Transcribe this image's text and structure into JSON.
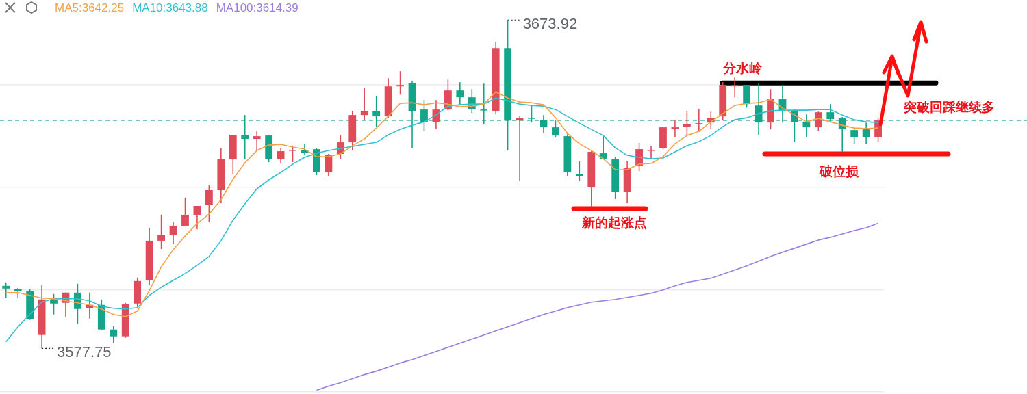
{
  "chart_data": {
    "type": "candlestick",
    "categories": [
      null,
      null,
      null,
      null,
      null,
      null,
      null,
      null,
      null,
      null,
      null,
      null,
      null,
      null,
      null,
      null,
      null,
      null,
      null,
      null,
      null,
      null,
      null,
      null,
      null,
      null,
      null,
      null,
      null,
      null,
      null,
      null,
      null,
      null,
      null,
      null,
      null,
      null,
      null,
      null,
      null,
      null,
      null,
      null,
      null,
      null,
      null,
      null,
      null,
      null,
      null,
      null,
      null,
      null,
      null,
      null,
      null,
      null,
      null,
      null,
      null,
      null,
      null,
      null,
      null,
      null,
      null,
      null,
      null,
      null,
      null,
      null,
      null,
      null
    ],
    "ohlc": [
      [
        3596.1,
        3597.1,
        3592.5,
        3595.3
      ],
      [
        3595.1,
        3595.5,
        3592.5,
        3594.5
      ],
      [
        3594.5,
        3595.1,
        3586.1,
        3586.3
      ],
      [
        3581.7,
        3596.3,
        3577.75,
        3592.1
      ],
      [
        3591.9,
        3593.7,
        3587.7,
        3590.9
      ],
      [
        3591.1,
        3594.1,
        3586.9,
        3594.1
      ],
      [
        3594.1,
        3596.7,
        3584.9,
        3589.3
      ],
      [
        3589.5,
        3594.1,
        3586.5,
        3590.5
      ],
      [
        3590.5,
        3592.1,
        3583.1,
        3583.3
      ],
      [
        3583.3,
        3584.3,
        3579.3,
        3581.3
      ],
      [
        3581.3,
        3591.1,
        3580.9,
        3590.7
      ],
      [
        3590.9,
        3598.5,
        3589.9,
        3597.5
      ],
      [
        3597.7,
        3613.1,
        3596.3,
        3609.3
      ],
      [
        3609.3,
        3616.9,
        3606.9,
        3610.9
      ],
      [
        3610.9,
        3614.9,
        3608.5,
        3613.7
      ],
      [
        3613.7,
        3621.9,
        3613.5,
        3616.9
      ],
      [
        3616.9,
        3619.5,
        3612.7,
        3619.5
      ],
      [
        3619.7,
        3625.5,
        3614.7,
        3624.1
      ],
      [
        3624.1,
        3636.3,
        3620.3,
        3633.3
      ],
      [
        3633.1,
        3640.3,
        3628.7,
        3640.3
      ],
      [
        3640.3,
        3646.1,
        3633.1,
        3639.1
      ],
      [
        3639.1,
        3641.3,
        3635.5,
        3639.9
      ],
      [
        3640.1,
        3640.3,
        3632.3,
        3633.3
      ],
      [
        3633.1,
        3636.3,
        3631.9,
        3635.5
      ],
      [
        3635.7,
        3637.1,
        3632.3,
        3635.9
      ],
      [
        3635.9,
        3637.7,
        3634.3,
        3635.1
      ],
      [
        3636.1,
        3636.3,
        3628.5,
        3629.3
      ],
      [
        3629.3,
        3634.7,
        3628.3,
        3634.5
      ],
      [
        3634.7,
        3640.3,
        3633.3,
        3638.1
      ],
      [
        3638.1,
        3647.3,
        3635.7,
        3646.1
      ],
      [
        3646.1,
        3654.1,
        3644.5,
        3647.3
      ],
      [
        3647.3,
        3651.7,
        3642.7,
        3645.7
      ],
      [
        3645.7,
        3656.9,
        3645.3,
        3654.5
      ],
      [
        3654.5,
        3658.9,
        3652.1,
        3654.9
      ],
      [
        3655.5,
        3656.1,
        3636.5,
        3647.3
      ],
      [
        3647.7,
        3650.5,
        3641.5,
        3644.1
      ],
      [
        3644.1,
        3650.5,
        3641.9,
        3647.7
      ],
      [
        3647.7,
        3656.5,
        3647.5,
        3653.3
      ],
      [
        3653.3,
        3655.7,
        3648.9,
        3651.3
      ],
      [
        3651.3,
        3653.7,
        3646.7,
        3647.9
      ],
      [
        3647.7,
        3655.3,
        3643.3,
        3647.5
      ],
      [
        3647.3,
        3667.5,
        3646.3,
        3665.7
      ],
      [
        3665.7,
        3673.92,
        3635.7,
        3644.5
      ],
      [
        3644.5,
        3645.9,
        3626.7,
        3645.3
      ],
      [
        3645.3,
        3648.9,
        3643.9,
        3645.1
      ],
      [
        3644.7,
        3646.1,
        3640.9,
        3642.5
      ],
      [
        3642.5,
        3644.5,
        3639.5,
        3640.1
      ],
      [
        3639.9,
        3640.9,
        3628.3,
        3629.3
      ],
      [
        3628.9,
        3632.5,
        3626.7,
        3628.3
      ],
      [
        3624.9,
        3635.5,
        3619.3,
        3635.3
      ],
      [
        3634.9,
        3640.3,
        3633.1,
        3633.3
      ],
      [
        3633.3,
        3633.9,
        3621.5,
        3623.7
      ],
      [
        3623.7,
        3632.5,
        3620.3,
        3630.5
      ],
      [
        3631.1,
        3637.9,
        3629.7,
        3636.1
      ],
      [
        3635.7,
        3637.1,
        3633.1,
        3635.9
      ],
      [
        3636.5,
        3642.7,
        3636.1,
        3642.5
      ],
      [
        3642.1,
        3644.7,
        3639.7,
        3642.5
      ],
      [
        3642.7,
        3647.3,
        3640.3,
        3643.5
      ],
      [
        3643.5,
        3647.9,
        3641.1,
        3643.7
      ],
      [
        3643.9,
        3647.1,
        3641.9,
        3645.3
      ],
      [
        3645.7,
        3655.7,
        3644.5,
        3654.9
      ],
      [
        3654.5,
        3657.3,
        3651.3,
        3654.9
      ],
      [
        3654.9,
        3654.9,
        3648.3,
        3649.3
      ],
      [
        3648.9,
        3655.5,
        3640.1,
        3643.9
      ],
      [
        3643.9,
        3653.7,
        3641.9,
        3650.9
      ],
      [
        3650.9,
        3654.9,
        3643.9,
        3647.3
      ],
      [
        3647.5,
        3647.7,
        3638.1,
        3644.1
      ],
      [
        3644.1,
        3646.3,
        3639.7,
        3642.5
      ],
      [
        3642.5,
        3647.1,
        3641.5,
        3646.9
      ],
      [
        3646.9,
        3649.3,
        3644.1,
        3644.9
      ],
      [
        3645.3,
        3645.5,
        3635.3,
        3641.9
      ],
      [
        3641.7,
        3642.1,
        3637.7,
        3639.7
      ],
      [
        3641.9,
        3643.9,
        3637.7,
        3639.7
      ],
      [
        3639.7,
        3645.1,
        3638.1,
        3644.5
      ]
    ],
    "colors": [
      "#14a589",
      "#14a589",
      "#14a589",
      "#e04b5a",
      "#14a589",
      "#e04b5a",
      "#14a589",
      "#e04b5a",
      "#14a589",
      "#14a589",
      "#e04b5a",
      "#e04b5a",
      "#e04b5a",
      "#e04b5a",
      "#e04b5a",
      "#e04b5a",
      "#e04b5a",
      "#e04b5a",
      "#e04b5a",
      "#e04b5a",
      "#14a589",
      "#e04b5a",
      "#14a589",
      "#e04b5a",
      "#e04b5a",
      "#14a589",
      "#14a589",
      "#e04b5a",
      "#e04b5a",
      "#e04b5a",
      "#e04b5a",
      "#14a589",
      "#e04b5a",
      "#e04b5a",
      "#14a589",
      "#14a589",
      "#e04b5a",
      "#e04b5a",
      "#14a589",
      "#14a589",
      "#14a589",
      "#e04b5a",
      "#14a589",
      "#e04b5a",
      "#14a589",
      "#14a589",
      "#14a589",
      "#14a589",
      "#14a589",
      "#e04b5a",
      "#14a589",
      "#14a589",
      "#e04b5a",
      "#e04b5a",
      "#e04b5a",
      "#e04b5a",
      "#e04b5a",
      "#e04b5a",
      "#e04b5a",
      "#e04b5a",
      "#e04b5a",
      "#e04b5a",
      "#14a589",
      "#14a589",
      "#e04b5a",
      "#14a589",
      "#14a589",
      "#14a589",
      "#e04b5a",
      "#14a589",
      "#14a589",
      "#14a589",
      "#14a589",
      "#e04b5a"
    ],
    "series": [
      {
        "name": "MA5:3642.25",
        "type": "line",
        "color": "#f5a146",
        "values": [
          3594.1,
          3594.1,
          3593.3,
          3592.5,
          3592.3,
          3591.7,
          3591.1,
          3590.5,
          3589.3,
          3587.7,
          3587.1,
          3588.7,
          3594.7,
          3601.7,
          3606.7,
          3610.7,
          3614.3,
          3617.1,
          3621.3,
          3627.3,
          3632.1,
          3635.7,
          3637.3,
          3637.5,
          3636.7,
          3636.1,
          3633.9,
          3633.9,
          3634.7,
          3637.1,
          3639.1,
          3642.3,
          3645.7,
          3649.5,
          3649.7,
          3649.1,
          3649.7,
          3649.3,
          3648.5,
          3648.7,
          3649.3,
          3652.9,
          3651.1,
          3649.9,
          3649.7,
          3649.1,
          3645.3,
          3640.7,
          3637.7,
          3635.7,
          3633.3,
          3630.1,
          3630.1,
          3631.7,
          3631.9,
          3633.9,
          3637.7,
          3640.1,
          3641.3,
          3644.1,
          3646.5,
          3648.9,
          3649.5,
          3649.7,
          3650.7,
          3648.1,
          3646.1,
          3644.1,
          3645.1,
          3644.1,
          3643.1,
          3642.3,
          3642.1,
          3642.3
        ]
      },
      {
        "name": "MA10:3643.88",
        "type": "line",
        "color": "#33bfd0",
        "values": [
          3579.7,
          3584.1,
          3587.7,
          3591.3,
          3592.3,
          3592.3,
          3592.3,
          3591.7,
          3590.1,
          3589.5,
          3589.3,
          3589.7,
          3593.3,
          3595.7,
          3597.7,
          3599.7,
          3602.1,
          3604.7,
          3609.3,
          3615.3,
          3620.1,
          3624.5,
          3627.1,
          3629.3,
          3631.7,
          3633.7,
          3634.9,
          3635.7,
          3636.3,
          3636.9,
          3637.5,
          3638.1,
          3640.3,
          3641.9,
          3643.1,
          3644.1,
          3646.1,
          3648.7,
          3649.1,
          3649.3,
          3649.3,
          3651.1,
          3650.3,
          3649.3,
          3648.9,
          3648.7,
          3647.7,
          3645.7,
          3643.7,
          3641.9,
          3640.1,
          3636.5,
          3634.3,
          3633.7,
          3633.3,
          3633.5,
          3635.3,
          3637.1,
          3638.3,
          3640.1,
          3642.7,
          3644.7,
          3645.3,
          3646.5,
          3647.3,
          3647.5,
          3647.5,
          3647.5,
          3647.7,
          3647.7,
          3646.1,
          3644.7,
          3644.1,
          3643.9
        ]
      },
      {
        "name": "MA100:3614.39",
        "type": "line",
        "color": "#9a7ee0",
        "values": [
          null,
          null,
          null,
          null,
          null,
          null,
          null,
          null,
          null,
          null,
          null,
          null,
          null,
          null,
          null,
          null,
          null,
          null,
          null,
          null,
          null,
          null,
          null,
          null,
          null,
          null,
          3565.5,
          3566.7,
          3567.7,
          3568.9,
          3570.1,
          3571.1,
          3572.3,
          3573.5,
          3574.5,
          3575.7,
          3576.9,
          3578.1,
          3579.3,
          3580.5,
          3581.7,
          3582.9,
          3584.1,
          3585.3,
          3586.5,
          3587.7,
          3588.7,
          3589.7,
          3590.5,
          3591.3,
          3591.7,
          3592.1,
          3592.7,
          3593.3,
          3593.9,
          3594.9,
          3596.1,
          3597.1,
          3597.7,
          3598.3,
          3599.5,
          3600.7,
          3601.9,
          3603.3,
          3604.7,
          3605.9,
          3607.1,
          3608.3,
          3609.5,
          3610.3,
          3611.3,
          3612.3,
          3613.1,
          3614.4
        ]
      }
    ],
    "yticks": [
      {
        "value": 3565,
        "label": null
      },
      {
        "value": 3595,
        "label": null
      },
      {
        "value": 3625,
        "label": null
      },
      {
        "value": 3655,
        "label": null
      }
    ],
    "grid": "y",
    "legend": "top left",
    "tick_labels": false,
    "marker": "none",
    "line_style": "solid",
    "ref_lines": [
      {
        "axis": "y",
        "value": 3644.5,
        "color": "#26a69a",
        "line_style": "dashed"
      },
      {
        "axis": "y",
        "value": 3655.5,
        "label": "分水岭",
        "color": "#000000"
      },
      {
        "axis": "y",
        "value": 3618.7,
        "label": "新的起涨点",
        "color": "#ff1010"
      },
      {
        "axis": "y",
        "value": 3634.7,
        "label": "破位损",
        "color": "#ff1010"
      }
    ],
    "annotations": [
      "3673.92",
      "3577.75",
      "突破回踩继续多"
    ]
  }
}
